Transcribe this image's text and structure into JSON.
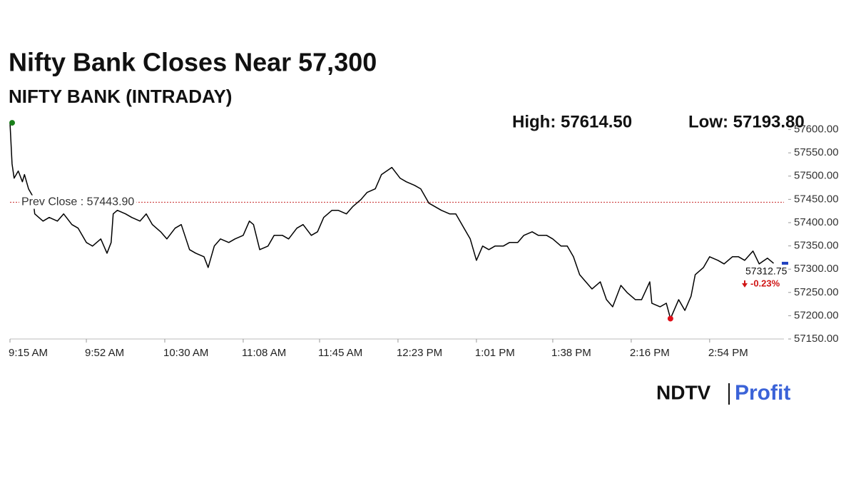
{
  "chart_data": {
    "type": "line",
    "title": "Nifty Bank Closes Near 57,300",
    "subtitle": "NIFTY BANK (INTRADAY)",
    "color": "#000000",
    "x": [
      555,
      556,
      557,
      559,
      561,
      562,
      564,
      566,
      567,
      571,
      574,
      578,
      581,
      585,
      588,
      592,
      595,
      599,
      602,
      604,
      605,
      607,
      611,
      614,
      618,
      621,
      624,
      628,
      631,
      635,
      638,
      642,
      645,
      649,
      651,
      654,
      657,
      661,
      664,
      668,
      671,
      673,
      676,
      680,
      683,
      687,
      690,
      694,
      697,
      701,
      704,
      707,
      711,
      714,
      718,
      721,
      725,
      728,
      732,
      735,
      740,
      744,
      747,
      751,
      754,
      758,
      761,
      764,
      768,
      771,
      775,
      778,
      781,
      784,
      787,
      790,
      794,
      797,
      801,
      804,
      808,
      811,
      815,
      818,
      822,
      825,
      828,
      831,
      834,
      837,
      841,
      844,
      847,
      851,
      854,
      858,
      861,
      865,
      866,
      870,
      873,
      875,
      879,
      882,
      885,
      887,
      891,
      894,
      898,
      901,
      905,
      908,
      911,
      915,
      918,
      922,
      925
    ],
    "values": [
      57614.5,
      57526.3,
      57495.6,
      57511.0,
      57487.9,
      57503.3,
      57472.6,
      57457.2,
      57418.8,
      57403.4,
      57411.1,
      57403.4,
      57418.8,
      57395.8,
      57388.1,
      57357.4,
      57349.7,
      57365.0,
      57334.3,
      57357.4,
      57418.8,
      57426.5,
      57418.8,
      57411.1,
      57403.4,
      57418.8,
      57395.8,
      57380.4,
      57365.0,
      57388.1,
      57395.8,
      57342.0,
      57334.3,
      57326.6,
      57303.6,
      57349.7,
      57365.0,
      57357.4,
      57365.0,
      57372.7,
      57403.4,
      57395.8,
      57342.0,
      57349.7,
      57372.7,
      57372.7,
      57365.0,
      57388.1,
      57395.8,
      57372.7,
      57380.4,
      57411.1,
      57426.5,
      57426.5,
      57418.8,
      57434.2,
      57449.5,
      57464.9,
      57472.6,
      57503.3,
      57518.6,
      57495.6,
      57487.9,
      57480.2,
      57472.6,
      57441.8,
      57434.2,
      57426.5,
      57418.8,
      57418.8,
      57388.1,
      57365.0,
      57319.0,
      57349.7,
      57342.0,
      57349.7,
      57349.7,
      57357.4,
      57357.4,
      57372.7,
      57380.4,
      57372.7,
      57372.7,
      57365.0,
      57349.7,
      57349.7,
      57326.6,
      57288.2,
      57272.9,
      57257.5,
      57272.9,
      57234.5,
      57219.1,
      57265.2,
      57249.8,
      57234.5,
      57234.5,
      57272.9,
      57226.8,
      57219.1,
      57226.8,
      57193.8,
      57234.5,
      57211.4,
      57242.2,
      57288.2,
      57303.6,
      57326.6,
      57319.0,
      57311.3,
      57326.6,
      57326.6,
      57319.0,
      57338.9,
      57311.3,
      57323.6,
      57312.75
    ],
    "xlim": [
      555,
      930
    ],
    "xticks": [
      {
        "value": 555,
        "label": "9:15 AM"
      },
      {
        "value": 592,
        "label": "9:52 AM"
      },
      {
        "value": 630,
        "label": "10:30 AM"
      },
      {
        "value": 668,
        "label": "11:08 AM"
      },
      {
        "value": 705,
        "label": "11:45 AM"
      },
      {
        "value": 743,
        "label": "12:23 PM"
      },
      {
        "value": 781,
        "label": "1:01 PM"
      },
      {
        "value": 818,
        "label": "1:38 PM"
      },
      {
        "value": 856,
        "label": "2:16 PM"
      },
      {
        "value": 894,
        "label": "2:54 PM"
      }
    ],
    "ylim": [
      57150,
      57630
    ],
    "yticks": [
      {
        "value": 57150,
        "label": "57150.00"
      },
      {
        "value": 57200,
        "label": "57200.00"
      },
      {
        "value": 57250,
        "label": "57250.00"
      },
      {
        "value": 57300,
        "label": "57300.00"
      },
      {
        "value": 57350,
        "label": "57350.00"
      },
      {
        "value": 57400,
        "label": "57400.00"
      },
      {
        "value": 57450,
        "label": "57450.00"
      },
      {
        "value": 57500,
        "label": "57500.00"
      },
      {
        "value": 57550,
        "label": "57550.00"
      },
      {
        "value": 57600,
        "label": "57600.00"
      }
    ],
    "high": {
      "x": 555,
      "value": 57614.5,
      "label": "High: 57614.50",
      "color": "#1a7f1a"
    },
    "low": {
      "x": 875,
      "value": 57193.8,
      "label": "Low: 57193.80",
      "color": "#e0101a"
    },
    "reference_line": {
      "value": 57443.9,
      "label": "Prev Close : 57443.90",
      "color": "#c62828"
    },
    "last": {
      "value": 57312.75,
      "change": -0.23,
      "change_label": "-0.23%",
      "marker_color": "#1f3fbf",
      "change_color": "#d01515"
    },
    "brand": {
      "left": "NDTV",
      "right": "Profit"
    }
  }
}
